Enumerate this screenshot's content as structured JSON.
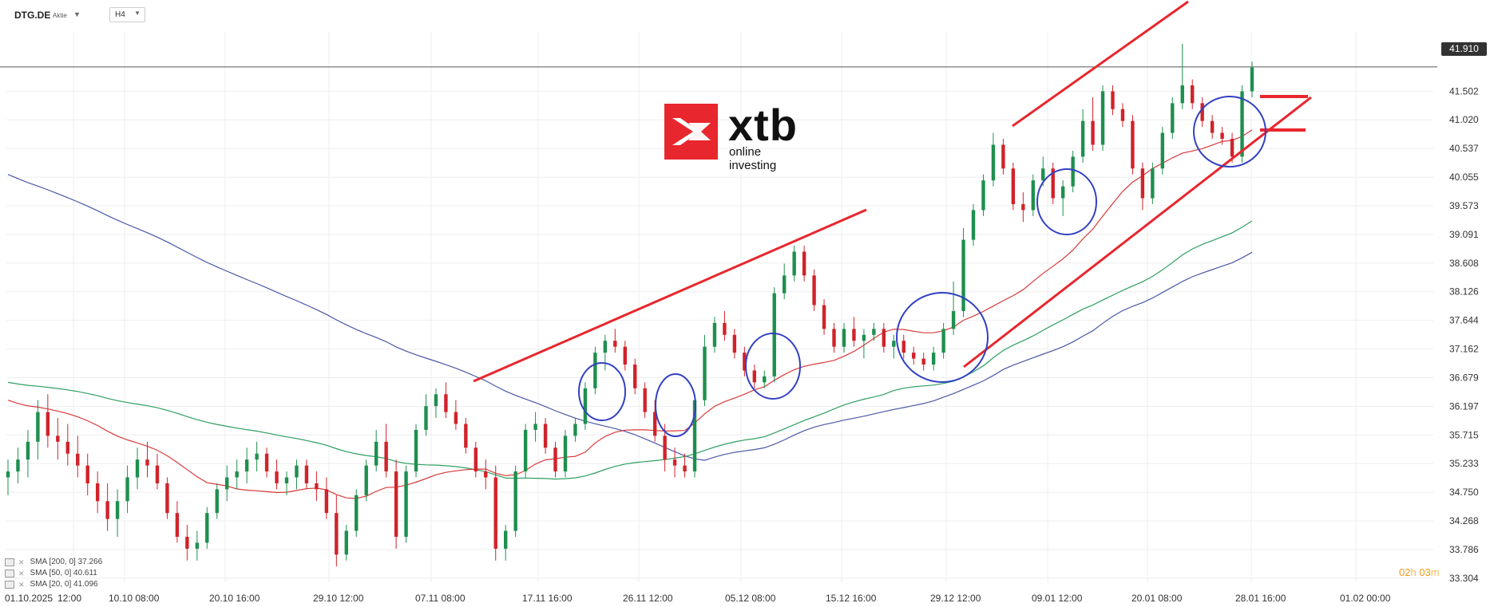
{
  "header": {
    "symbol": "DTG.DE",
    "symbol_type": "Aktie",
    "timeframe": "H4"
  },
  "logo": {
    "word": "xtb",
    "tagline": "online investing"
  },
  "current_price_label": "41.910",
  "countdown": {
    "hours": "02",
    "h_unit": "h",
    "minutes": "03",
    "m_unit": "m"
  },
  "legend": [
    {
      "label": "SMA [200, 0] 37.266"
    },
    {
      "label": "SMA [50, 0] 40.611"
    },
    {
      "label": "SMA [20, 0] 41.096"
    }
  ],
  "colors": {
    "bull": "#1e8f4e",
    "bear": "#d0232a",
    "sma200": "#4a58a6",
    "sma50": "#2e9e62",
    "sma20": "#d83a3a",
    "trendline": "#e8262d",
    "circle": "#3240c4",
    "grid": "#eeeeee"
  },
  "chart_data": {
    "type": "candlestick",
    "y_ticks": [
      "41.502",
      "41.020",
      "40.537",
      "40.055",
      "39.573",
      "39.091",
      "38.608",
      "38.126",
      "37.644",
      "37.162",
      "36.679",
      "36.197",
      "35.715",
      "35.233",
      "34.750",
      "34.268",
      "33.786",
      "33.304"
    ],
    "ylim": [
      33.1,
      42.5
    ],
    "x_ticks": [
      "01.10.2025",
      "12:00",
      "10.10 08:00",
      "20.10 16:00",
      "29.10 12:00",
      "07.11 08:00",
      "17.11 16:00",
      "26.11 12:00",
      "05.12 08:00",
      "15.12 16:00",
      "29.12 12:00",
      "09.01 12:00",
      "20.01 08:00",
      "28.01 16:00",
      "01.02 00:00"
    ],
    "last_price": 41.91,
    "candles": [
      [
        35.0,
        35.3,
        34.7,
        35.1
      ],
      [
        35.1,
        35.5,
        34.9,
        35.3
      ],
      [
        35.3,
        35.8,
        35.0,
        35.6
      ],
      [
        35.6,
        36.3,
        35.3,
        36.1
      ],
      [
        36.1,
        36.4,
        35.5,
        35.7
      ],
      [
        35.7,
        36.0,
        35.3,
        35.6
      ],
      [
        35.6,
        35.9,
        35.2,
        35.4
      ],
      [
        35.4,
        35.7,
        35.0,
        35.2
      ],
      [
        35.2,
        35.4,
        34.7,
        34.9
      ],
      [
        34.9,
        35.1,
        34.4,
        34.6
      ],
      [
        34.6,
        34.9,
        34.1,
        34.3
      ],
      [
        34.3,
        34.8,
        34.0,
        34.6
      ],
      [
        34.6,
        35.2,
        34.4,
        35.0
      ],
      [
        35.0,
        35.5,
        34.8,
        35.3
      ],
      [
        35.3,
        35.6,
        35.0,
        35.2
      ],
      [
        35.2,
        35.4,
        34.8,
        34.9
      ],
      [
        34.9,
        35.0,
        34.3,
        34.4
      ],
      [
        34.4,
        34.6,
        33.9,
        34.0
      ],
      [
        34.0,
        34.2,
        33.6,
        33.8
      ],
      [
        33.8,
        34.1,
        33.6,
        33.9
      ],
      [
        33.9,
        34.5,
        33.8,
        34.4
      ],
      [
        34.4,
        34.9,
        34.3,
        34.8
      ],
      [
        34.8,
        35.2,
        34.6,
        35.0
      ],
      [
        35.0,
        35.3,
        34.8,
        35.1
      ],
      [
        35.1,
        35.5,
        34.9,
        35.3
      ],
      [
        35.3,
        35.6,
        35.1,
        35.4
      ],
      [
        35.4,
        35.5,
        35.0,
        35.1
      ],
      [
        35.1,
        35.3,
        34.8,
        34.9
      ],
      [
        34.9,
        35.1,
        34.7,
        35.0
      ],
      [
        35.0,
        35.3,
        34.8,
        35.2
      ],
      [
        35.2,
        35.3,
        34.8,
        34.9
      ],
      [
        34.9,
        35.1,
        34.6,
        34.8
      ],
      [
        34.8,
        35.0,
        34.3,
        34.4
      ],
      [
        34.4,
        34.7,
        33.5,
        33.7
      ],
      [
        33.7,
        34.2,
        33.6,
        34.1
      ],
      [
        34.1,
        34.8,
        34.0,
        34.7
      ],
      [
        34.7,
        35.3,
        34.6,
        35.2
      ],
      [
        35.2,
        35.8,
        35.1,
        35.6
      ],
      [
        35.6,
        35.9,
        35.0,
        35.1
      ],
      [
        35.1,
        35.3,
        33.8,
        34.0
      ],
      [
        34.0,
        35.2,
        33.9,
        35.1
      ],
      [
        35.1,
        35.9,
        35.0,
        35.8
      ],
      [
        35.8,
        36.4,
        35.7,
        36.2
      ],
      [
        36.2,
        36.5,
        36.0,
        36.4
      ],
      [
        36.4,
        36.6,
        36.0,
        36.1
      ],
      [
        36.1,
        36.3,
        35.8,
        35.9
      ],
      [
        35.9,
        36.0,
        35.4,
        35.5
      ],
      [
        35.5,
        35.6,
        35.0,
        35.1
      ],
      [
        35.1,
        35.3,
        34.8,
        35.0
      ],
      [
        35.0,
        35.2,
        33.6,
        33.8
      ],
      [
        33.8,
        34.2,
        33.6,
        34.1
      ],
      [
        34.1,
        35.2,
        34.0,
        35.1
      ],
      [
        35.1,
        35.9,
        35.0,
        35.8
      ],
      [
        35.8,
        36.1,
        35.6,
        35.9
      ],
      [
        35.9,
        36.0,
        35.4,
        35.5
      ],
      [
        35.5,
        35.6,
        35.0,
        35.1
      ],
      [
        35.1,
        35.8,
        35.0,
        35.7
      ],
      [
        35.7,
        36.0,
        35.6,
        35.9
      ],
      [
        35.9,
        36.6,
        35.8,
        36.5
      ],
      [
        36.5,
        37.2,
        36.4,
        37.1
      ],
      [
        37.1,
        37.4,
        36.8,
        37.3
      ],
      [
        37.3,
        37.5,
        37.1,
        37.2
      ],
      [
        37.2,
        37.3,
        36.8,
        36.9
      ],
      [
        36.9,
        37.0,
        36.4,
        36.5
      ],
      [
        36.5,
        36.6,
        36.0,
        36.1
      ],
      [
        36.1,
        36.3,
        35.6,
        35.7
      ],
      [
        35.7,
        35.9,
        35.1,
        35.3
      ],
      [
        35.3,
        35.5,
        35.0,
        35.2
      ],
      [
        35.2,
        35.4,
        35.0,
        35.1
      ],
      [
        35.1,
        36.4,
        35.0,
        36.3
      ],
      [
        36.3,
        37.4,
        36.2,
        37.2
      ],
      [
        37.2,
        37.7,
        37.1,
        37.6
      ],
      [
        37.6,
        37.8,
        37.3,
        37.4
      ],
      [
        37.4,
        37.5,
        37.0,
        37.1
      ],
      [
        37.1,
        37.2,
        36.7,
        36.8
      ],
      [
        36.8,
        36.9,
        36.5,
        36.6
      ],
      [
        36.6,
        36.8,
        36.5,
        36.7
      ],
      [
        36.7,
        38.2,
        36.6,
        38.1
      ],
      [
        38.1,
        38.6,
        38.0,
        38.4
      ],
      [
        38.4,
        38.9,
        38.3,
        38.8
      ],
      [
        38.8,
        38.9,
        38.3,
        38.4
      ],
      [
        38.4,
        38.5,
        37.8,
        37.9
      ],
      [
        37.9,
        38.0,
        37.4,
        37.5
      ],
      [
        37.5,
        37.6,
        37.1,
        37.2
      ],
      [
        37.2,
        37.6,
        37.1,
        37.5
      ],
      [
        37.5,
        37.7,
        37.2,
        37.3
      ],
      [
        37.3,
        37.5,
        37.0,
        37.4
      ],
      [
        37.4,
        37.6,
        37.3,
        37.5
      ],
      [
        37.5,
        37.6,
        37.1,
        37.2
      ],
      [
        37.2,
        37.4,
        37.0,
        37.3
      ],
      [
        37.3,
        37.4,
        37.0,
        37.1
      ],
      [
        37.1,
        37.2,
        36.9,
        37.0
      ],
      [
        37.0,
        37.1,
        36.8,
        36.9
      ],
      [
        36.9,
        37.2,
        36.8,
        37.1
      ],
      [
        37.1,
        37.6,
        37.0,
        37.5
      ],
      [
        37.5,
        38.3,
        37.4,
        37.8
      ],
      [
        37.8,
        39.2,
        37.7,
        39.0
      ],
      [
        39.0,
        39.6,
        38.9,
        39.5
      ],
      [
        39.5,
        40.1,
        39.4,
        40.0
      ],
      [
        40.0,
        40.8,
        39.9,
        40.6
      ],
      [
        40.6,
        40.7,
        40.1,
        40.2
      ],
      [
        40.2,
        40.3,
        39.5,
        39.6
      ],
      [
        39.6,
        39.8,
        39.3,
        39.5
      ],
      [
        39.5,
        40.1,
        39.4,
        40.0
      ],
      [
        40.0,
        40.4,
        39.9,
        40.2
      ],
      [
        40.2,
        40.3,
        39.6,
        39.7
      ],
      [
        39.7,
        40.0,
        39.4,
        39.9
      ],
      [
        39.9,
        40.5,
        39.8,
        40.4
      ],
      [
        40.4,
        41.2,
        40.3,
        41.0
      ],
      [
        41.0,
        41.4,
        40.5,
        40.6
      ],
      [
        40.6,
        41.6,
        40.5,
        41.5
      ],
      [
        41.5,
        41.6,
        41.1,
        41.2
      ],
      [
        41.2,
        41.3,
        40.9,
        41.0
      ],
      [
        41.0,
        41.1,
        40.1,
        40.2
      ],
      [
        40.2,
        40.3,
        39.5,
        39.7
      ],
      [
        39.7,
        40.3,
        39.6,
        40.2
      ],
      [
        40.2,
        40.9,
        40.1,
        40.8
      ],
      [
        40.8,
        41.4,
        40.7,
        41.3
      ],
      [
        41.3,
        42.3,
        41.2,
        41.6
      ],
      [
        41.6,
        41.7,
        41.2,
        41.3
      ],
      [
        41.3,
        41.4,
        40.9,
        41.0
      ],
      [
        41.0,
        41.1,
        40.7,
        40.8
      ],
      [
        40.8,
        40.9,
        40.6,
        40.7
      ],
      [
        40.7,
        40.8,
        40.3,
        40.4
      ],
      [
        40.4,
        41.6,
        40.3,
        41.5
      ],
      [
        41.5,
        42.0,
        41.4,
        41.9
      ]
    ],
    "series": [
      {
        "name": "SMA [200, 0] 37.266"
      },
      {
        "name": "SMA [50, 0] 40.611"
      },
      {
        "name": "SMA [20, 0] 41.096"
      }
    ]
  }
}
